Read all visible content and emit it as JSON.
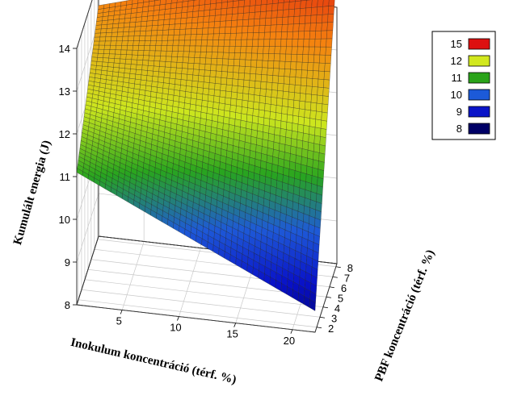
{
  "chart_data": {
    "type": "surface3d",
    "title": "",
    "xlabel": "Inokulum koncentráció (térf. %)",
    "ylabel": "PBF koncentráció (térf. %)",
    "zlabel": "Kumulált energia (J)",
    "x_ticks": [
      "5",
      "10",
      "15",
      "20"
    ],
    "y_ticks": [
      "2",
      "3",
      "4",
      "5",
      "6",
      "7",
      "8"
    ],
    "z_ticks": [
      "8",
      "9",
      "10",
      "11",
      "12",
      "13",
      "14"
    ],
    "xlim": [
      1,
      22
    ],
    "ylim": [
      1.5,
      8.3
    ],
    "zlim": [
      8,
      14
    ],
    "grid": true,
    "surface_corners": [
      {
        "x": 1,
        "y": 1.5,
        "z": 11.1
      },
      {
        "x": 22,
        "y": 1.5,
        "z": 8.5
      },
      {
        "x": 1,
        "y": 8.3,
        "z": 13.4
      },
      {
        "x": 22,
        "y": 8.3,
        "z": 15.0
      }
    ],
    "legend": {
      "position": "right",
      "entries": [
        {
          "label": "15",
          "color": "#dd1010"
        },
        {
          "label": "12",
          "color": "#d2e81e"
        },
        {
          "label": "11",
          "color": "#2aa31a"
        },
        {
          "label": "10",
          "color": "#1c5ad8"
        },
        {
          "label": "9",
          "color": "#0a14c8"
        },
        {
          "label": "8",
          "color": "#000066"
        }
      ]
    }
  }
}
